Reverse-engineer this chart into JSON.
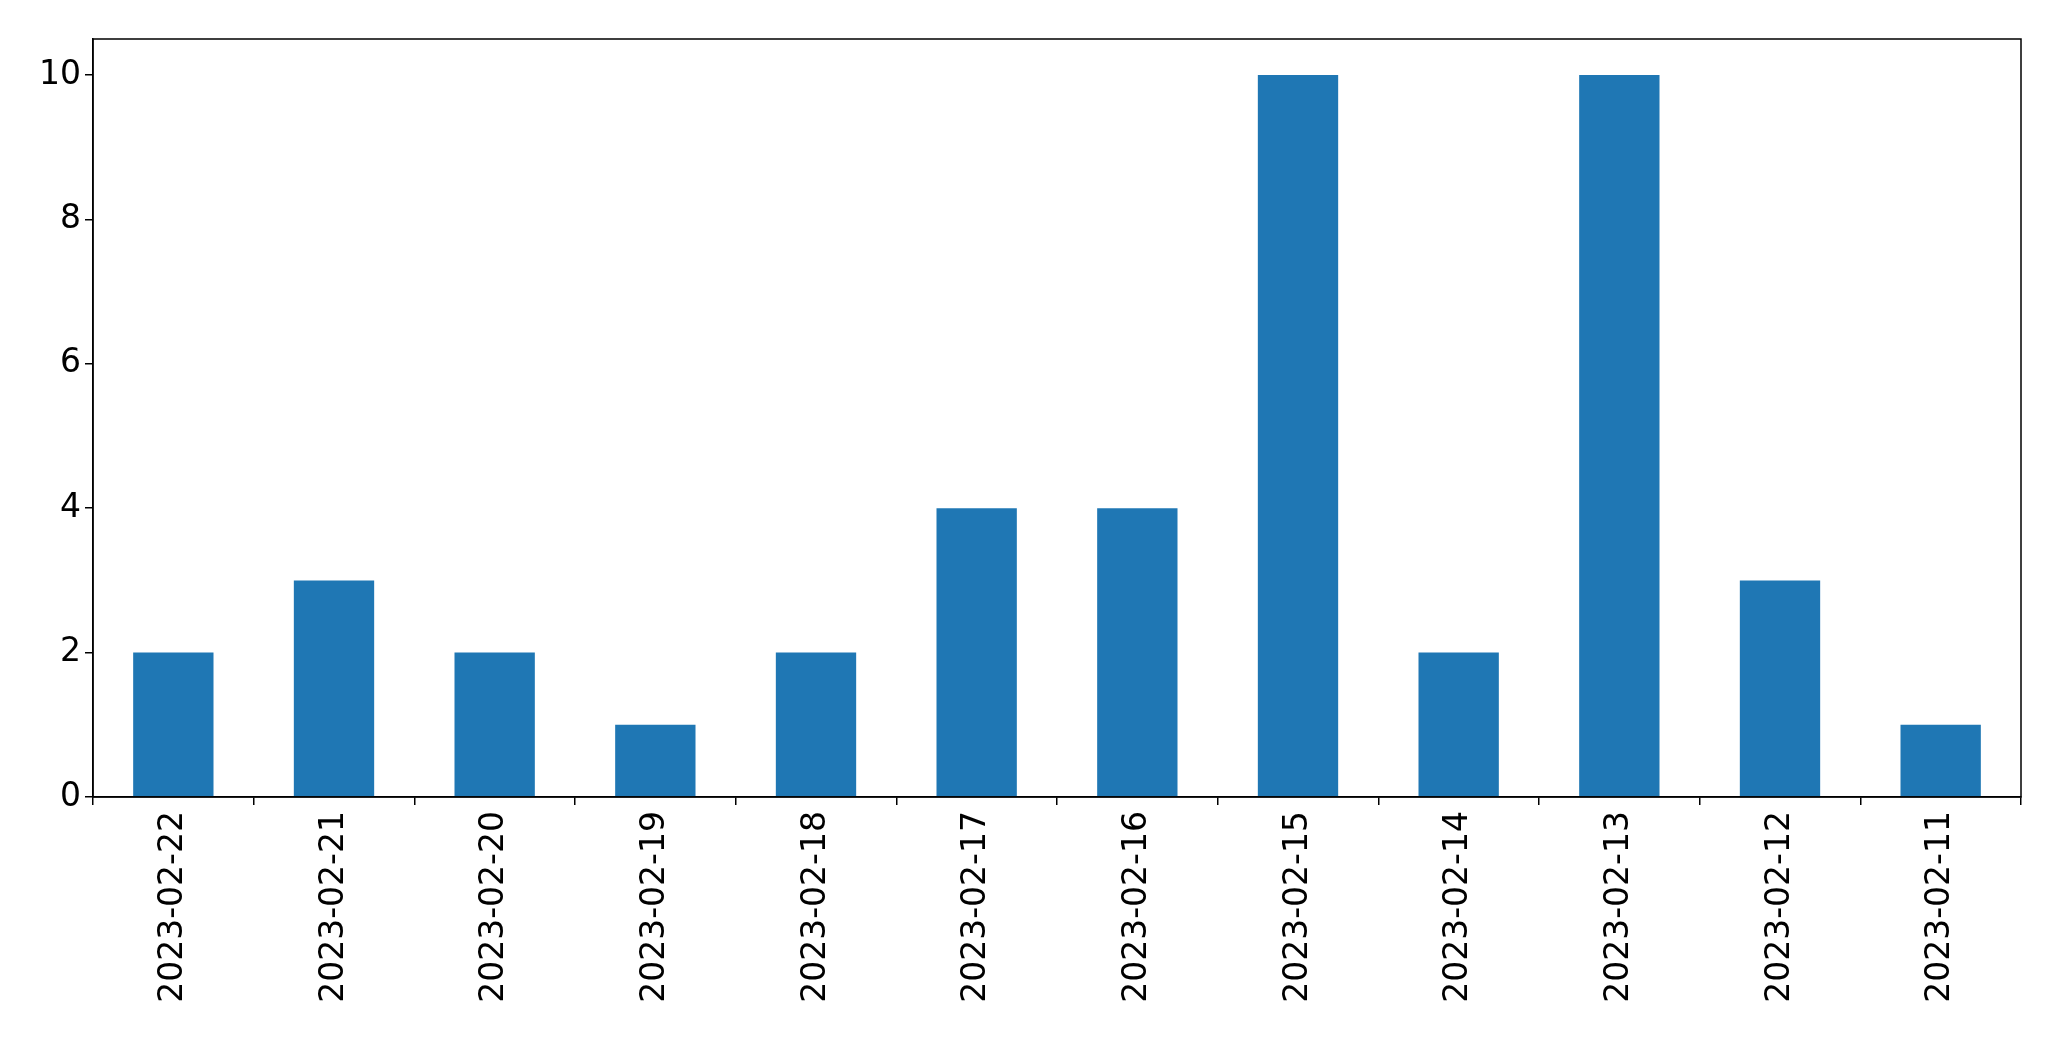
{
  "chart_data": {
    "type": "bar",
    "categories": [
      "2023-02-22",
      "2023-02-21",
      "2023-02-20",
      "2023-02-19",
      "2023-02-18",
      "2023-02-17",
      "2023-02-16",
      "2023-02-15",
      "2023-02-14",
      "2023-02-13",
      "2023-02-12",
      "2023-02-11"
    ],
    "values": [
      2,
      3,
      2,
      1,
      2,
      4,
      4,
      10,
      2,
      10,
      3,
      1
    ],
    "color": "#1f77b4",
    "ylim": [
      0,
      10.5
    ],
    "yticks": [
      0,
      2,
      4,
      6,
      8,
      10
    ]
  }
}
